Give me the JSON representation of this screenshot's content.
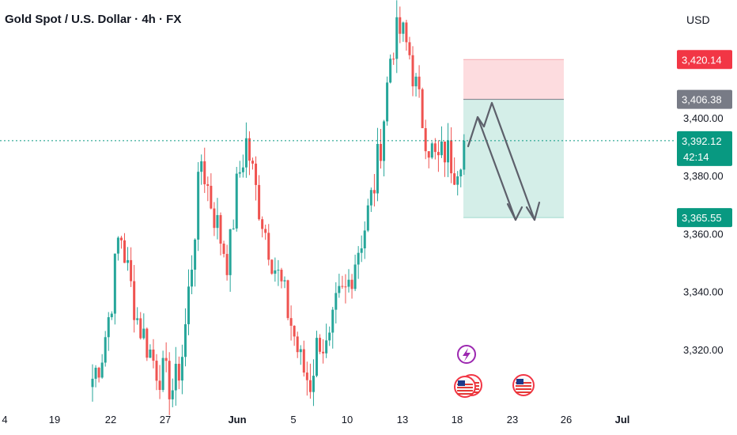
{
  "header": {
    "title": "Gold Spot / U.S. Dollar · 4h · FX",
    "currency": "USD"
  },
  "colors": {
    "up": "#26a69a",
    "down": "#ef5350",
    "stop_zone": "#fddcdf",
    "target_zone": "#d4eee8",
    "current_price_line": "#089981",
    "stop_badge": "#f23645",
    "entry_badge": "#787b86",
    "current_badge": "#089981",
    "target_badge": "#089981",
    "event_purple": "#9c27b0",
    "arrow": "#5d606b"
  },
  "price_axis": {
    "ticks": [
      "3,400.00",
      "3,380.00",
      "3,360.00",
      "3,340.00",
      "3,320.00"
    ],
    "tick_values": [
      3400,
      3380,
      3360,
      3340,
      3320
    ]
  },
  "time_axis": {
    "labels": [
      "4",
      "19",
      "22",
      "27",
      "Jun",
      "5",
      "10",
      "13",
      "18",
      "23",
      "26",
      "Jul"
    ],
    "bold": [
      "Jun",
      "Jul"
    ]
  },
  "badges": {
    "stop": "3,420.14",
    "entry": "3,406.38",
    "current_price": "3,392.12",
    "countdown": "42:14",
    "target": "3,365.55"
  },
  "events": {
    "flash_icon": "lightning-icon",
    "flag_icon": "us-flag-icon"
  },
  "chart_data": {
    "type": "candlestick",
    "instrument": "Gold Spot / U.S. Dollar",
    "timeframe": "4h",
    "ylim": [
      3305,
      3432
    ],
    "current_price": 3392.12,
    "position": {
      "side": "short",
      "stop": 3420.14,
      "entry": 3406.38,
      "target": 3365.55
    },
    "trend": "rise from ~3310 to a peak near 3432, pullback to ~3388-3392",
    "sample_closes": [
      3310,
      3318,
      3335,
      3362,
      3345,
      3330,
      3322,
      3314,
      3310,
      3306,
      3320,
      3352,
      3386,
      3372,
      3360,
      3350,
      3378,
      3392,
      3375,
      3362,
      3350,
      3340,
      3328,
      3315,
      3308,
      3325,
      3318,
      3336,
      3340,
      3352,
      3362,
      3375,
      3396,
      3425,
      3430,
      3422,
      3405,
      3392,
      3384,
      3389,
      3383,
      3392
    ]
  }
}
